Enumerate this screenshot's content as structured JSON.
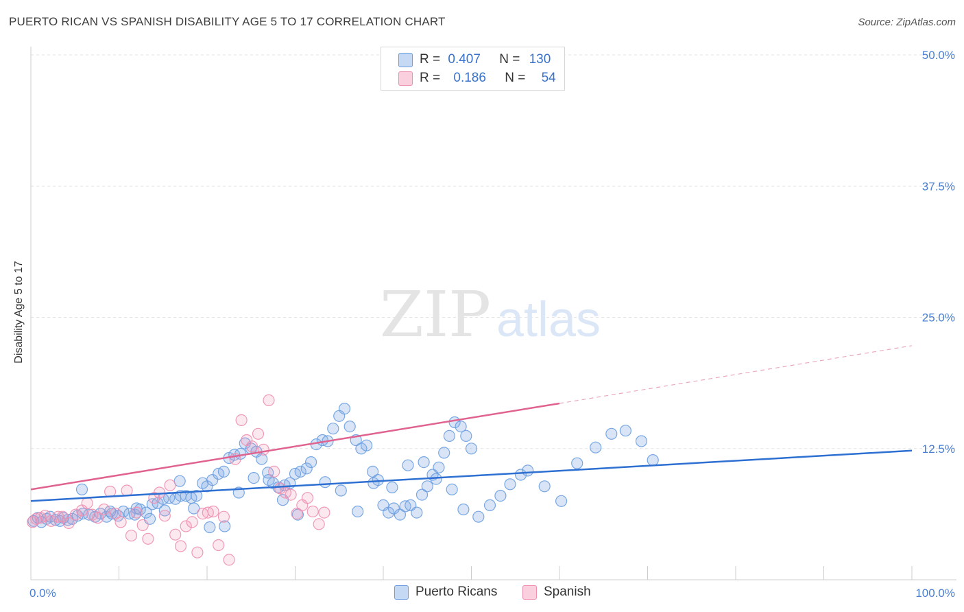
{
  "title": "PUERTO RICAN VS SPANISH DISABILITY AGE 5 TO 17 CORRELATION CHART",
  "source": "Source: ZipAtlas.com",
  "watermark": {
    "zip": "ZIP",
    "atlas": "atlas"
  },
  "legend": {
    "rows": [
      {
        "r_label": "R =",
        "r_value": "0.407",
        "n_label": "N =",
        "n_value": "130",
        "color": "#6a9ee0"
      },
      {
        "r_label": "R =",
        "r_value": "0.186",
        "n_label": "N =",
        "n_value": "54",
        "color": "#ee8fb0"
      }
    ]
  },
  "bottom_legend": [
    {
      "label": "Puerto Ricans",
      "color": "#6a9ee0"
    },
    {
      "label": "Spanish",
      "color": "#ee8fb0"
    }
  ],
  "chart_data": {
    "type": "scatter",
    "xlabel": "",
    "ylabel": "Disability Age 5 to 17",
    "xlim": [
      0,
      100
    ],
    "ylim": [
      0,
      50
    ],
    "y_ticks": [
      {
        "value": 12.5,
        "label": "12.5%"
      },
      {
        "value": 25.0,
        "label": "25.0%"
      },
      {
        "value": 37.5,
        "label": "37.5%"
      },
      {
        "value": 50.0,
        "label": "50.0%"
      }
    ],
    "x_tick_labels": {
      "left": "0.0%",
      "right": "100.0%"
    },
    "grid": true,
    "series": [
      {
        "name": "Puerto Ricans",
        "color": "#6a9ee0",
        "trend": {
          "x0": 0,
          "y0": 7.5,
          "x1": 100,
          "y1": 12.3,
          "dashed_from": null
        },
        "points": [
          [
            0.3,
            5.6
          ],
          [
            0.8,
            5.9
          ],
          [
            1.2,
            5.5
          ],
          [
            1.8,
            5.8
          ],
          [
            2.2,
            6.0
          ],
          [
            2.8,
            5.7
          ],
          [
            3.3,
            5.6
          ],
          [
            3.7,
            5.9
          ],
          [
            4.2,
            5.7
          ],
          [
            4.7,
            5.8
          ],
          [
            5.3,
            6.1
          ],
          [
            5.9,
            6.3
          ],
          [
            6.6,
            6.2
          ],
          [
            7.3,
            6.0
          ],
          [
            7.9,
            6.3
          ],
          [
            8.6,
            6.0
          ],
          [
            9.2,
            6.3
          ],
          [
            9.9,
            6.1
          ],
          [
            10.5,
            6.5
          ],
          [
            11.2,
            6.3
          ],
          [
            11.8,
            6.2
          ],
          [
            12.4,
            6.7
          ],
          [
            13.1,
            6.4
          ],
          [
            13.8,
            7.2
          ],
          [
            14.4,
            7.3
          ],
          [
            15.0,
            7.7
          ],
          [
            15.7,
            7.8
          ],
          [
            16.4,
            7.7
          ],
          [
            17.0,
            8.0
          ],
          [
            17.6,
            8.0
          ],
          [
            18.2,
            7.8
          ],
          [
            18.8,
            8.0
          ],
          [
            19.5,
            9.2
          ],
          [
            20.0,
            8.9
          ],
          [
            20.6,
            9.5
          ],
          [
            21.3,
            10.1
          ],
          [
            21.9,
            10.3
          ],
          [
            22.5,
            11.6
          ],
          [
            23.1,
            11.9
          ],
          [
            23.8,
            12.0
          ],
          [
            24.3,
            13.0
          ],
          [
            25.0,
            12.5
          ],
          [
            25.6,
            12.2
          ],
          [
            26.2,
            11.5
          ],
          [
            26.9,
            10.2
          ],
          [
            27.5,
            9.2
          ],
          [
            28.1,
            8.8
          ],
          [
            28.8,
            9.0
          ],
          [
            29.4,
            9.2
          ],
          [
            30.0,
            10.1
          ],
          [
            30.6,
            10.3
          ],
          [
            31.3,
            10.6
          ],
          [
            31.8,
            11.2
          ],
          [
            32.4,
            12.9
          ],
          [
            33.1,
            13.3
          ],
          [
            33.7,
            13.2
          ],
          [
            34.3,
            14.4
          ],
          [
            35.0,
            15.6
          ],
          [
            35.6,
            16.3
          ],
          [
            36.2,
            14.6
          ],
          [
            36.9,
            13.3
          ],
          [
            37.5,
            12.5
          ],
          [
            38.1,
            12.8
          ],
          [
            38.8,
            10.3
          ],
          [
            39.4,
            9.5
          ],
          [
            40.0,
            7.1
          ],
          [
            40.6,
            6.4
          ],
          [
            41.2,
            6.8
          ],
          [
            41.9,
            6.2
          ],
          [
            42.5,
            7.0
          ],
          [
            43.1,
            7.1
          ],
          [
            43.8,
            6.4
          ],
          [
            44.4,
            8.1
          ],
          [
            45.0,
            8.9
          ],
          [
            45.6,
            10.0
          ],
          [
            46.3,
            10.7
          ],
          [
            46.9,
            12.1
          ],
          [
            47.5,
            13.7
          ],
          [
            48.1,
            15.0
          ],
          [
            48.8,
            14.6
          ],
          [
            49.4,
            13.7
          ],
          [
            50.0,
            12.5
          ],
          [
            5.8,
            8.6
          ],
          [
            9.0,
            6.5
          ],
          [
            12.0,
            6.8
          ],
          [
            13.5,
            5.8
          ],
          [
            15.2,
            6.6
          ],
          [
            16.9,
            9.4
          ],
          [
            18.5,
            6.8
          ],
          [
            20.3,
            5.0
          ],
          [
            22.0,
            5.1
          ],
          [
            23.6,
            8.3
          ],
          [
            25.3,
            9.7
          ],
          [
            27.0,
            9.5
          ],
          [
            28.6,
            7.6
          ],
          [
            30.3,
            6.2
          ],
          [
            33.4,
            9.3
          ],
          [
            35.2,
            8.5
          ],
          [
            37.1,
            6.5
          ],
          [
            38.9,
            9.2
          ],
          [
            41.0,
            8.8
          ],
          [
            42.8,
            10.9
          ],
          [
            44.6,
            11.2
          ],
          [
            46.0,
            9.6
          ],
          [
            47.8,
            8.6
          ],
          [
            49.1,
            6.7
          ],
          [
            50.8,
            6.0
          ],
          [
            52.1,
            7.1
          ],
          [
            53.3,
            8.0
          ],
          [
            54.4,
            9.1
          ],
          [
            55.6,
            10.0
          ],
          [
            56.4,
            10.4
          ],
          [
            58.3,
            8.9
          ],
          [
            60.2,
            7.5
          ],
          [
            62.0,
            11.1
          ],
          [
            64.1,
            12.6
          ],
          [
            65.9,
            13.9
          ],
          [
            67.5,
            14.2
          ],
          [
            69.3,
            13.2
          ],
          [
            70.6,
            11.4
          ]
        ]
      },
      {
        "name": "Spanish",
        "color": "#ee8fb0",
        "trend": {
          "x0": 0,
          "y0": 8.6,
          "x1": 60,
          "y1": 16.8,
          "dashed_from": 60,
          "dashed_to_x": 100,
          "dashed_to_y": 22.3
        },
        "points": [
          [
            0.2,
            5.5
          ],
          [
            0.6,
            5.8
          ],
          [
            1.1,
            5.9
          ],
          [
            1.6,
            6.1
          ],
          [
            2.3,
            5.6
          ],
          [
            3.1,
            6.0
          ],
          [
            3.6,
            6.0
          ],
          [
            4.3,
            5.4
          ],
          [
            5.1,
            6.2
          ],
          [
            5.8,
            6.6
          ],
          [
            6.4,
            7.3
          ],
          [
            7.0,
            6.2
          ],
          [
            7.6,
            5.9
          ],
          [
            8.3,
            6.7
          ],
          [
            9.0,
            8.4
          ],
          [
            9.6,
            6.3
          ],
          [
            10.2,
            5.5
          ],
          [
            10.9,
            8.5
          ],
          [
            11.4,
            4.2
          ],
          [
            12.0,
            6.4
          ],
          [
            12.7,
            5.2
          ],
          [
            13.3,
            3.9
          ],
          [
            14.0,
            7.8
          ],
          [
            14.6,
            8.3
          ],
          [
            15.2,
            6.1
          ],
          [
            15.8,
            9.0
          ],
          [
            16.4,
            4.3
          ],
          [
            17.0,
            3.2
          ],
          [
            17.6,
            5.1
          ],
          [
            18.3,
            5.5
          ],
          [
            18.9,
            2.6
          ],
          [
            19.5,
            6.3
          ],
          [
            20.1,
            6.4
          ],
          [
            20.7,
            6.5
          ],
          [
            21.3,
            3.3
          ],
          [
            21.9,
            6.0
          ],
          [
            22.5,
            1.9
          ],
          [
            23.2,
            11.5
          ],
          [
            23.9,
            15.2
          ],
          [
            24.5,
            13.3
          ],
          [
            25.1,
            12.7
          ],
          [
            25.8,
            13.9
          ],
          [
            26.4,
            12.4
          ],
          [
            27.0,
            17.1
          ],
          [
            27.6,
            10.3
          ],
          [
            28.3,
            8.7
          ],
          [
            28.9,
            8.3
          ],
          [
            29.5,
            8.1
          ],
          [
            30.2,
            6.3
          ],
          [
            30.8,
            7.1
          ],
          [
            31.4,
            7.8
          ],
          [
            32.0,
            6.5
          ],
          [
            32.7,
            5.3
          ],
          [
            33.3,
            6.4
          ]
        ]
      }
    ]
  }
}
